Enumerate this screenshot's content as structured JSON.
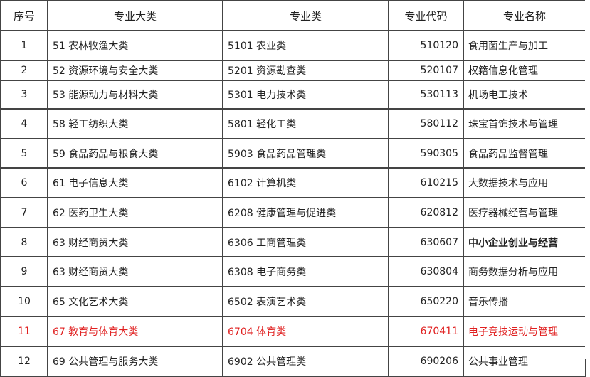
{
  "headers": [
    "序号",
    "专业大类",
    "专业类",
    "专业代码",
    "专业名称"
  ],
  "rows": [
    [
      "1",
      "51 农林牧渔大类",
      "5101 农业类",
      "510120",
      "食用菌生产与加工"
    ],
    [
      "2",
      "52 资源环境与安全大类",
      "5201 资源勘查类",
      "520107",
      "权籍信息化管理"
    ],
    [
      "3",
      "53 能源动力与材料大类",
      "5301 电力技术类",
      "530113",
      "机场电工技术"
    ],
    [
      "4",
      "58 轻工纺织大类",
      "5801 轻化工类",
      "580112",
      "珠宝首饰技术与管理"
    ],
    [
      "5",
      "59 食品药品与粮食大类",
      "5903 食品药品管理类",
      "590305",
      "食品药品监督管理"
    ],
    [
      "6",
      "61 电子信息大类",
      "6102 计算机类",
      "610215",
      "大数据技术与应用"
    ],
    [
      "7",
      "62 医药卫生大类",
      "6208 健康管理与促进类",
      "620812",
      "医疗器械经营与管理"
    ],
    [
      "8",
      "63 财经商贸大类",
      "6306 工商管理类",
      "630607",
      "中小企业创业与经营"
    ],
    [
      "9",
      "63 财经商贸大类",
      "6308 电子商务类",
      "630804",
      "商务数据分析与应用"
    ],
    [
      "10",
      "65 文化艺术大类",
      "6502 表演艺术类",
      "650220",
      "音乐传播"
    ],
    [
      "11",
      "67 教育与体育大类",
      "6704 体育类",
      "670411",
      "电子竞技运动与管理"
    ],
    [
      "12",
      "69 公共管理与服务大类",
      "6902 公共管理类",
      "690206",
      "公共事业管理"
    ]
  ],
  "highlight_color": "#e02020"
}
